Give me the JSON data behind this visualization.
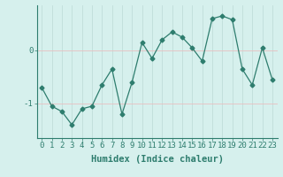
{
  "xlabel": "Humidex (Indice chaleur)",
  "ylabel": "",
  "x": [
    0,
    1,
    2,
    3,
    4,
    5,
    6,
    7,
    8,
    9,
    10,
    11,
    12,
    13,
    14,
    15,
    16,
    17,
    18,
    19,
    20,
    21,
    22,
    23
  ],
  "y": [
    -0.7,
    -1.05,
    -1.15,
    -1.4,
    -1.1,
    -1.05,
    -0.65,
    -0.35,
    -1.2,
    -0.6,
    0.15,
    -0.15,
    0.2,
    0.35,
    0.25,
    0.05,
    -0.2,
    0.6,
    0.65,
    0.58,
    -0.35,
    -0.65,
    0.05,
    -0.55
  ],
  "line_color": "#2e7d6e",
  "marker": "D",
  "marker_size": 2.5,
  "bg_color": "#d6f0ed",
  "grid_v_color": "#c0ddd9",
  "grid_h_color": "#e8c0c0",
  "tick_label_color": "#2e7d6e",
  "axis_label_color": "#2e7d6e",
  "ylim": [
    -1.65,
    0.85
  ],
  "yticks": [
    -1,
    0
  ],
  "xlim": [
    -0.5,
    23.5
  ],
  "label_fontsize": 7.5,
  "tick_fontsize": 6.5
}
